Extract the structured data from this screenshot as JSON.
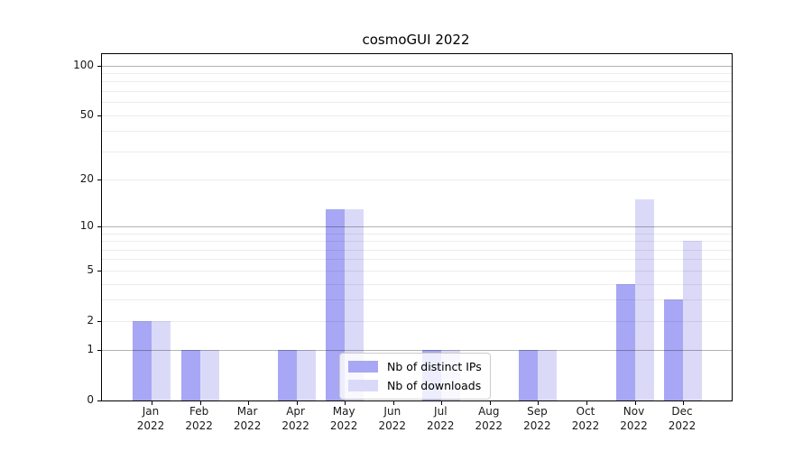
{
  "chart_data": {
    "type": "bar",
    "title": "cosmoGUI 2022",
    "x_tick_labels": [
      [
        "Jan",
        "2022"
      ],
      [
        "Feb",
        "2022"
      ],
      [
        "Mar",
        "2022"
      ],
      [
        "Apr",
        "2022"
      ],
      [
        "May",
        "2022"
      ],
      [
        "Jun",
        "2022"
      ],
      [
        "Jul",
        "2022"
      ],
      [
        "Aug",
        "2022"
      ],
      [
        "Sep",
        "2022"
      ],
      [
        "Oct",
        "2022"
      ],
      [
        "Nov",
        "2022"
      ],
      [
        "Dec",
        "2022"
      ]
    ],
    "series": [
      {
        "name": "Nb of distinct IPs",
        "color": "#a7a7f5",
        "values": [
          2,
          1,
          0,
          1,
          13,
          0,
          1,
          0,
          1,
          0,
          4,
          3
        ]
      },
      {
        "name": "Nb of downloads",
        "color": "#dadaf8",
        "values": [
          2,
          1,
          0,
          1,
          13,
          0,
          1,
          0,
          1,
          0,
          15,
          8
        ]
      }
    ],
    "y_axis": {
      "scale": "log1p",
      "ticks": [
        0,
        1,
        2,
        5,
        10,
        20,
        50,
        100
      ],
      "ylim": [
        0,
        117
      ],
      "major_gridlines": [
        1,
        10,
        100
      ],
      "minor_gridlines": [
        2,
        3,
        4,
        5,
        6,
        7,
        8,
        9,
        20,
        30,
        40,
        50,
        60,
        70,
        80,
        90
      ]
    },
    "legend": {
      "position": "lower-center"
    },
    "grid": true,
    "colors": {
      "axis": "#000000",
      "major_grid": "#b3b3b3",
      "minor_grid": "#ececec",
      "text": "#1a1a1a"
    }
  }
}
